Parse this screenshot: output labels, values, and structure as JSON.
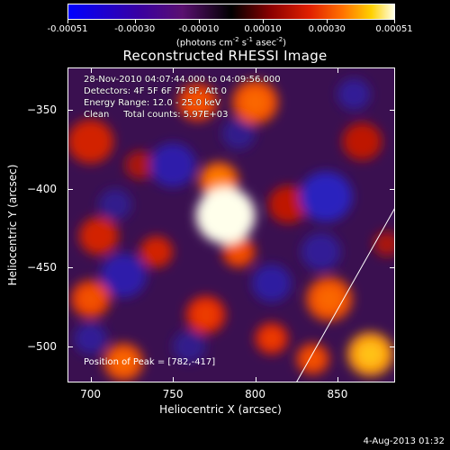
{
  "colorbar": {
    "labels": [
      "-0.00051",
      "-0.00030",
      "-0.00010",
      "0.00010",
      "0.00030",
      "0.00051"
    ],
    "unit_prefix": "(photons cm",
    "unit_sup1": "-2",
    "unit_mid1": " s",
    "unit_sup2": "-1",
    "unit_mid2": " asec",
    "unit_sup3": "-2",
    "unit_suffix": ")"
  },
  "title": "Reconstructed RHESSI Image",
  "info": {
    "line1": "28-Nov-2010 04:07:44.000 to 04:09:56.000",
    "line2": "Detectors: 4F 5F 6F 7F 8F, Att 0",
    "line3": "Energy Range: 12.0 - 25.0 keV",
    "line4": "Clean     Total counts: 5.97E+03",
    "peak": "Position of Peak = [782,-417]"
  },
  "chart_data": {
    "type": "heatmap",
    "title": "Reconstructed RHESSI Image",
    "xlabel": "Heliocentric X (arcsec)",
    "ylabel": "Heliocentric Y (arcsec)",
    "xlim": [
      686,
      885
    ],
    "ylim": [
      -523,
      -323
    ],
    "xticks": [
      700,
      750,
      800,
      850
    ],
    "yticks": [
      -350,
      -400,
      -450,
      -500
    ],
    "color_range": [
      -0.00051,
      0.00051
    ],
    "peak": [
      782,
      -417
    ],
    "blobs": [
      {
        "x": 782,
        "y": -417,
        "r": 18,
        "v": 1.0
      },
      {
        "x": 778,
        "y": -395,
        "r": 12,
        "v": 0.65
      },
      {
        "x": 790,
        "y": -440,
        "r": 10,
        "v": 0.55
      },
      {
        "x": 845,
        "y": -470,
        "r": 14,
        "v": 0.6
      },
      {
        "x": 870,
        "y": -505,
        "r": 14,
        "v": 0.75
      },
      {
        "x": 835,
        "y": -508,
        "r": 10,
        "v": 0.55
      },
      {
        "x": 810,
        "y": -495,
        "r": 10,
        "v": 0.5
      },
      {
        "x": 770,
        "y": -480,
        "r": 12,
        "v": 0.5
      },
      {
        "x": 700,
        "y": -470,
        "r": 12,
        "v": 0.55
      },
      {
        "x": 705,
        "y": -430,
        "r": 12,
        "v": 0.45
      },
      {
        "x": 720,
        "y": -510,
        "r": 12,
        "v": 0.6
      },
      {
        "x": 800,
        "y": -345,
        "r": 14,
        "v": 0.6
      },
      {
        "x": 765,
        "y": -345,
        "r": 12,
        "v": 0.55
      },
      {
        "x": 700,
        "y": -370,
        "r": 14,
        "v": 0.45
      },
      {
        "x": 740,
        "y": -440,
        "r": 10,
        "v": 0.45
      },
      {
        "x": 730,
        "y": -385,
        "r": 9,
        "v": 0.35
      },
      {
        "x": 820,
        "y": -410,
        "r": 12,
        "v": 0.4
      },
      {
        "x": 865,
        "y": -370,
        "r": 12,
        "v": 0.4
      },
      {
        "x": 880,
        "y": -435,
        "r": 8,
        "v": 0.35
      },
      {
        "x": 750,
        "y": -385,
        "r": 14,
        "v": -0.45
      },
      {
        "x": 843,
        "y": -405,
        "r": 16,
        "v": -0.55
      },
      {
        "x": 720,
        "y": -455,
        "r": 14,
        "v": -0.45
      },
      {
        "x": 810,
        "y": -460,
        "r": 12,
        "v": -0.4
      },
      {
        "x": 840,
        "y": -440,
        "r": 12,
        "v": -0.35
      },
      {
        "x": 700,
        "y": -495,
        "r": 10,
        "v": -0.35
      },
      {
        "x": 790,
        "y": -365,
        "r": 10,
        "v": -0.3
      },
      {
        "x": 860,
        "y": -340,
        "r": 10,
        "v": -0.35
      },
      {
        "x": 760,
        "y": -500,
        "r": 10,
        "v": -0.3
      },
      {
        "x": 715,
        "y": -410,
        "r": 10,
        "v": -0.3
      }
    ],
    "limb": [
      [
        825,
        -523
      ],
      [
        885,
        -412
      ]
    ]
  },
  "timestamp": "4-Aug-2013 01:32"
}
